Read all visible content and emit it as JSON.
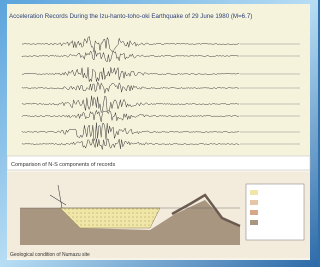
{
  "header": {
    "title": "Acceleration Records During the Izu-hanto-toho-oki Earthquake of 29 June 1980 (M=6.7)"
  },
  "figures": [
    {
      "caption": "Comparison of N-S components of records"
    },
    {
      "caption": "Geological condition of Numazu site"
    }
  ]
}
